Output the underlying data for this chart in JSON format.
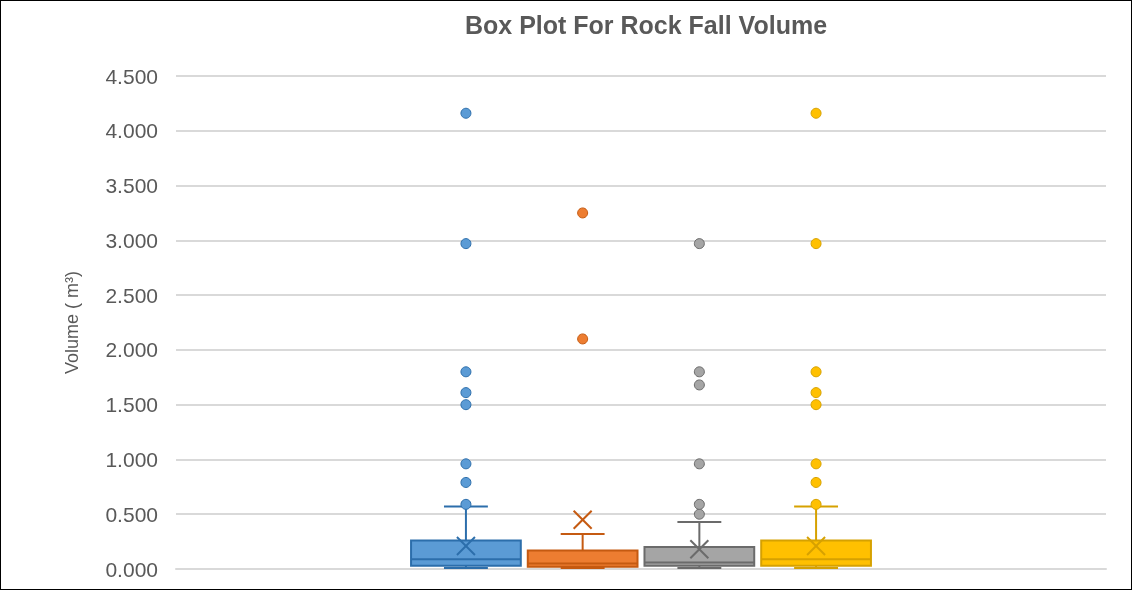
{
  "chart_data": {
    "type": "box",
    "title": "Box Plot For Rock Fall Volume",
    "ylabel": "Volume ( m³)",
    "categories": [
      null
    ],
    "ylim": [
      0,
      4.5
    ],
    "yticks": [
      {
        "value": 0,
        "label": "0.000"
      },
      {
        "value": 0.5,
        "label": "0.500"
      },
      {
        "value": 1,
        "label": "1.000"
      },
      {
        "value": 1.5,
        "label": "1.500"
      },
      {
        "value": 2,
        "label": "2.000"
      },
      {
        "value": 2.5,
        "label": "2.500"
      },
      {
        "value": 3,
        "label": "3.000"
      },
      {
        "value": 3.5,
        "label": "3.500"
      },
      {
        "value": 4,
        "label": "4.000"
      },
      {
        "value": 4.5,
        "label": "4.500"
      }
    ],
    "grid": "y",
    "marker": "circle",
    "series": [
      {
        "color": "#5b9bd5",
        "boxes": [
          {
            "low": 0.01,
            "q1": 0.03,
            "median": 0.09,
            "q3": 0.26,
            "high": 0.57,
            "mean": 0.21,
            "outliers": [
              0.59,
              0.79,
              0.96,
              1.5,
              1.61,
              1.8,
              2.97,
              4.16
            ]
          }
        ]
      },
      {
        "color": "#ed7d31",
        "boxes": [
          {
            "low": 0.01,
            "q1": 0.02,
            "median": 0.05,
            "q3": 0.17,
            "high": 0.32,
            "mean": 0.45,
            "outliers": [
              2.1,
              3.25
            ]
          }
        ]
      },
      {
        "color": "#a5a5a5",
        "boxes": [
          {
            "low": 0.01,
            "q1": 0.03,
            "median": 0.06,
            "q3": 0.2,
            "high": 0.43,
            "mean": 0.18,
            "outliers": [
              0.5,
              0.59,
              0.96,
              1.68,
              1.8,
              2.97
            ]
          }
        ]
      },
      {
        "color": "#ffc000",
        "boxes": [
          {
            "low": 0.01,
            "q1": 0.03,
            "median": 0.09,
            "q3": 0.26,
            "high": 0.57,
            "mean": 0.21,
            "outliers": [
              0.59,
              0.79,
              0.96,
              1.5,
              1.61,
              1.8,
              2.97,
              4.16
            ]
          }
        ]
      }
    ]
  }
}
